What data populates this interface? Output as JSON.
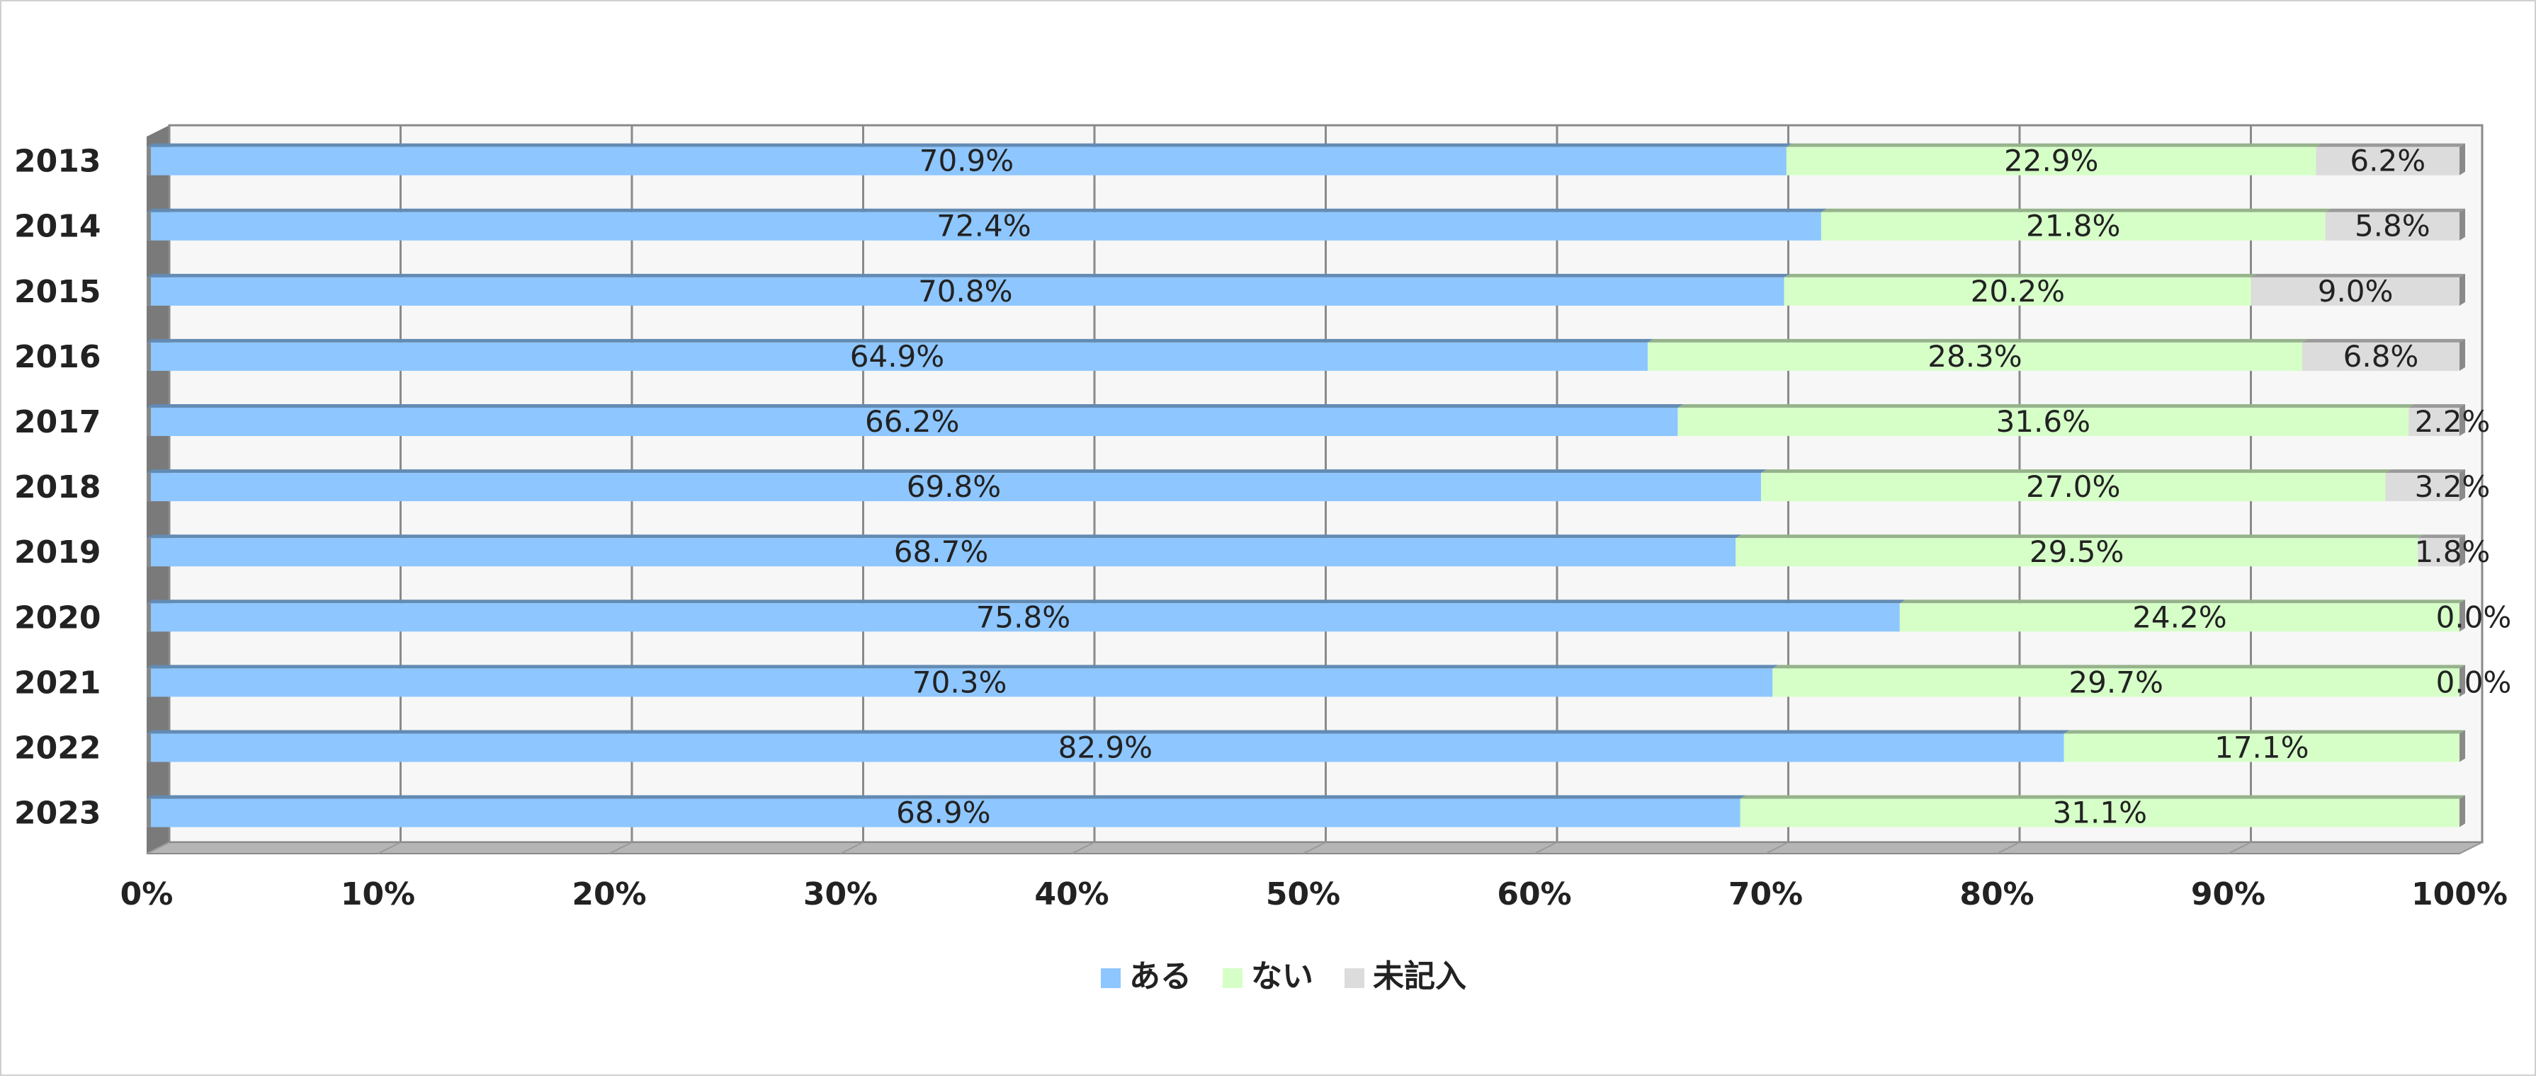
{
  "chart_data": {
    "type": "bar",
    "orientation": "horizontal",
    "stacked": "percent",
    "categories": [
      "2013",
      "2014",
      "2015",
      "2016",
      "2017",
      "2018",
      "2019",
      "2020",
      "2021",
      "2022",
      "2023"
    ],
    "series": [
      {
        "name": "ある",
        "color": "#8EC6FF",
        "values": [
          70.9,
          72.4,
          70.8,
          64.9,
          66.2,
          69.8,
          68.7,
          75.8,
          70.3,
          82.9,
          68.9
        ]
      },
      {
        "name": "ない",
        "color": "#D6FFC8",
        "values": [
          22.9,
          21.8,
          20.2,
          28.3,
          31.6,
          27.0,
          29.5,
          24.2,
          29.7,
          17.1,
          31.1
        ]
      },
      {
        "name": "未記入",
        "color": "#DCDCDC",
        "values": [
          6.2,
          5.8,
          9.0,
          6.8,
          2.2,
          3.2,
          1.8,
          0.0,
          0.0,
          null,
          null
        ]
      }
    ],
    "data_labels": [
      [
        "70.9%",
        "22.9%",
        "6.2%"
      ],
      [
        "72.4%",
        "21.8%",
        "5.8%"
      ],
      [
        "70.8%",
        "20.2%",
        "9.0%"
      ],
      [
        "64.9%",
        "28.3%",
        "6.8%"
      ],
      [
        "66.2%",
        "31.6%",
        "2.2%"
      ],
      [
        "69.8%",
        "27.0%",
        "3.2%"
      ],
      [
        "68.7%",
        "29.5%",
        "1.8%"
      ],
      [
        "75.8%",
        "24.2%",
        "0.0%"
      ],
      [
        "70.3%",
        "29.7%",
        "0.0%"
      ],
      [
        "82.9%",
        "17.1%",
        ""
      ],
      [
        "68.9%",
        "31.1%",
        ""
      ]
    ],
    "x_ticks": [
      "0%",
      "10%",
      "20%",
      "30%",
      "40%",
      "50%",
      "60%",
      "70%",
      "80%",
      "90%",
      "100%"
    ],
    "xlim": [
      0,
      100
    ],
    "grid": true,
    "legend_position": "bottom",
    "title": "",
    "xlabel": "",
    "ylabel": ""
  }
}
